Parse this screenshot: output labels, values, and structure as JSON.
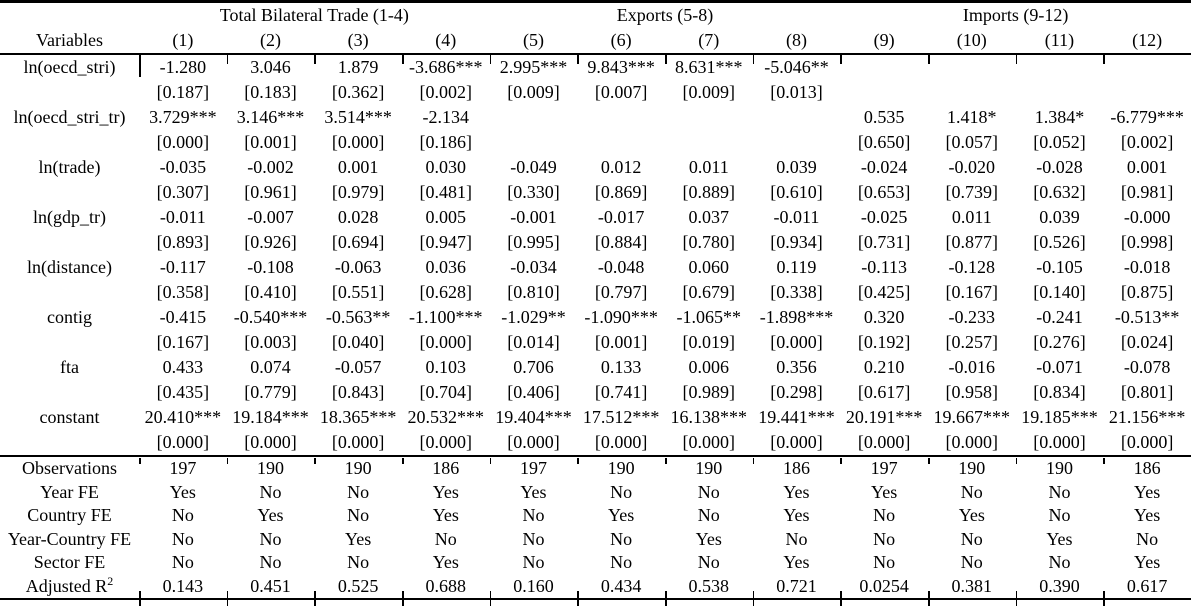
{
  "table": {
    "title_groups": [
      {
        "label": "Total Bilateral Trade (1-4)",
        "span": 4
      },
      {
        "label": "Exports (5-8)",
        "span": 4
      },
      {
        "label": "Imports (9-12)",
        "span": 4
      }
    ],
    "variables_header": "Variables",
    "col_headers": [
      "(1)",
      "(2)",
      "(3)",
      "(4)",
      "(5)",
      "(6)",
      "(7)",
      "(8)",
      "(9)",
      "(10)",
      "(11)",
      "(12)"
    ],
    "coef_rows": [
      {
        "label": "ln(oecd_stri)",
        "coefs": [
          "-1.280",
          "3.046",
          "1.879",
          "-3.686***",
          "2.995***",
          "9.843***",
          "8.631***",
          "-5.046**",
          "",
          "",
          "",
          ""
        ],
        "pvals": [
          "[0.187]",
          "[0.183]",
          "[0.362]",
          "[0.002]",
          "[0.009]",
          "[0.007]",
          "[0.009]",
          "[0.013]",
          "",
          "",
          "",
          ""
        ]
      },
      {
        "label": "ln(oecd_stri_tr)",
        "coefs": [
          "3.729***",
          "3.146***",
          "3.514***",
          "-2.134",
          "",
          "",
          "",
          "",
          "0.535",
          "1.418*",
          "1.384*",
          "-6.779***"
        ],
        "pvals": [
          "[0.000]",
          "[0.001]",
          "[0.000]",
          "[0.186]",
          "",
          "",
          "",
          "",
          "[0.650]",
          "[0.057]",
          "[0.052]",
          "[0.002]"
        ]
      },
      {
        "label": "ln(trade)",
        "coefs": [
          "-0.035",
          "-0.002",
          "0.001",
          "0.030",
          "-0.049",
          "0.012",
          "0.011",
          "0.039",
          "-0.024",
          "-0.020",
          "-0.028",
          "0.001"
        ],
        "pvals": [
          "[0.307]",
          "[0.961]",
          "[0.979]",
          "[0.481]",
          "[0.330]",
          "[0.869]",
          "[0.889]",
          "[0.610]",
          "[0.653]",
          "[0.739]",
          "[0.632]",
          "[0.981]"
        ]
      },
      {
        "label": "ln(gdp_tr)",
        "coefs": [
          "-0.011",
          "-0.007",
          "0.028",
          "0.005",
          "-0.001",
          "-0.017",
          "0.037",
          "-0.011",
          "-0.025",
          "0.011",
          "0.039",
          "-0.000"
        ],
        "pvals": [
          "[0.893]",
          "[0.926]",
          "[0.694]",
          "[0.947]",
          "[0.995]",
          "[0.884]",
          "[0.780]",
          "[0.934]",
          "[0.731]",
          "[0.877]",
          "[0.526]",
          "[0.998]"
        ]
      },
      {
        "label": "ln(distance)",
        "coefs": [
          "-0.117",
          "-0.108",
          "-0.063",
          "0.036",
          "-0.034",
          "-0.048",
          "0.060",
          "0.119",
          "-0.113",
          "-0.128",
          "-0.105",
          "-0.018"
        ],
        "pvals": [
          "[0.358]",
          "[0.410]",
          "[0.551]",
          "[0.628]",
          "[0.810]",
          "[0.797]",
          "[0.679]",
          "[0.338]",
          "[0.425]",
          "[0.167]",
          "[0.140]",
          "[0.875]"
        ]
      },
      {
        "label": "contig",
        "coefs": [
          "-0.415",
          "-0.540***",
          "-0.563**",
          "-1.100***",
          "-1.029**",
          "-1.090***",
          "-1.065**",
          "-1.898***",
          "0.320",
          "-0.233",
          "-0.241",
          "-0.513**"
        ],
        "pvals": [
          "[0.167]",
          "[0.003]",
          "[0.040]",
          "[0.000]",
          "[0.014]",
          "[0.001]",
          "[0.019]",
          "[0.000]",
          "[0.192]",
          "[0.257]",
          "[0.276]",
          "[0.024]"
        ]
      },
      {
        "label": "fta",
        "coefs": [
          "0.433",
          "0.074",
          "-0.057",
          "0.103",
          "0.706",
          "0.133",
          "0.006",
          "0.356",
          "0.210",
          "-0.016",
          "-0.071",
          "-0.078"
        ],
        "pvals": [
          "[0.435]",
          "[0.779]",
          "[0.843]",
          "[0.704]",
          "[0.406]",
          "[0.741]",
          "[0.989]",
          "[0.298]",
          "[0.617]",
          "[0.958]",
          "[0.834]",
          "[0.801]"
        ]
      },
      {
        "label": "constant",
        "coefs": [
          "20.410***",
          "19.184***",
          "18.365***",
          "20.532***",
          "19.404***",
          "17.512***",
          "16.138***",
          "19.441***",
          "20.191***",
          "19.667***",
          "19.185***",
          "21.156***"
        ],
        "pvals": [
          "[0.000]",
          "[0.000]",
          "[0.000]",
          "[0.000]",
          "[0.000]",
          "[0.000]",
          "[0.000]",
          "[0.000]",
          "[0.000]",
          "[0.000]",
          "[0.000]",
          "[0.000]"
        ]
      }
    ],
    "stat_rows": [
      {
        "label": "Observations",
        "values": [
          "197",
          "190",
          "190",
          "186",
          "197",
          "190",
          "190",
          "186",
          "197",
          "190",
          "190",
          "186"
        ]
      },
      {
        "label": "Year FE",
        "values": [
          "Yes",
          "No",
          "No",
          "Yes",
          "Yes",
          "No",
          "No",
          "Yes",
          "Yes",
          "No",
          "No",
          "Yes"
        ]
      },
      {
        "label": "Country FE",
        "values": [
          "No",
          "Yes",
          "No",
          "Yes",
          "No",
          "Yes",
          "No",
          "Yes",
          "No",
          "Yes",
          "No",
          "Yes"
        ]
      },
      {
        "label": "Year-Country FE",
        "values": [
          "No",
          "No",
          "Yes",
          "No",
          "No",
          "No",
          "Yes",
          "No",
          "No",
          "No",
          "Yes",
          "No"
        ]
      },
      {
        "label": "Sector FE",
        "values": [
          "No",
          "No",
          "No",
          "Yes",
          "No",
          "No",
          "No",
          "Yes",
          "No",
          "No",
          "No",
          "Yes"
        ]
      },
      {
        "label": "Adjusted R",
        "label_sup": "2",
        "values": [
          "0.143",
          "0.451",
          "0.525",
          "0.688",
          "0.160",
          "0.434",
          "0.538",
          "0.721",
          "0.0254",
          "0.381",
          "0.390",
          "0.617"
        ]
      }
    ]
  }
}
